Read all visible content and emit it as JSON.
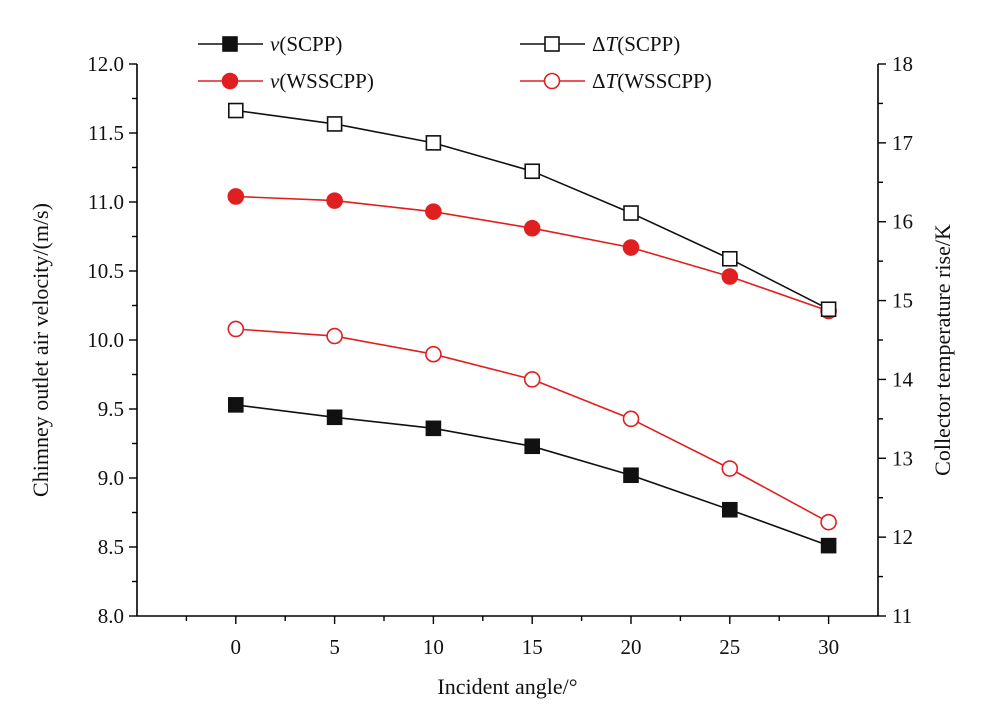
{
  "chart_data": {
    "type": "line",
    "x": [
      0,
      5,
      10,
      15,
      20,
      25,
      30
    ],
    "xlabel": "Incident angle/°",
    "ylabel_left": "Chimney outlet air velocity/(m/s)",
    "ylabel_right": "Collector temperature rise/K",
    "xlim": [
      -5,
      32.5
    ],
    "ylim_left": [
      8.0,
      12.0
    ],
    "ylim_right": [
      11,
      18
    ],
    "xticks": [
      "0",
      "5",
      "10",
      "15",
      "20",
      "25",
      "30"
    ],
    "yticks_left": [
      "8.0",
      "8.5",
      "9.0",
      "9.5",
      "10.0",
      "10.5",
      "11.0",
      "11.5",
      "12.0"
    ],
    "yticks_right": [
      "11",
      "12",
      "13",
      "14",
      "15",
      "16",
      "17",
      "18"
    ],
    "grid": false,
    "legend_position": "top",
    "series": [
      {
        "name": "v(SCPP)",
        "legend_var": "v",
        "legend_rest": "(SCPP)",
        "axis": "left",
        "color": "#111111",
        "marker": "filled-square",
        "values": [
          9.53,
          9.44,
          9.36,
          9.23,
          9.02,
          8.77,
          8.51
        ]
      },
      {
        "name": "v(WSSCPP)",
        "legend_var": "v",
        "legend_rest": "(WSSCPP)",
        "axis": "left",
        "color": "#e02020",
        "marker": "filled-circle",
        "values": [
          11.04,
          11.01,
          10.93,
          10.81,
          10.67,
          10.46,
          10.21
        ]
      },
      {
        "name": "ΔT(SCPP)",
        "legend_pre": "Δ",
        "legend_var": "T",
        "legend_rest": "(SCPP)",
        "axis": "right",
        "color": "#111111",
        "marker": "open-square",
        "values": [
          17.41,
          17.24,
          17.0,
          16.64,
          16.11,
          15.53,
          14.89
        ]
      },
      {
        "name": "ΔT(WSSCPP)",
        "legend_pre": "Δ",
        "legend_var": "T",
        "legend_rest": "(WSSCPP)",
        "axis": "right",
        "color": "#e02020",
        "marker": "open-circle",
        "values": [
          14.64,
          14.55,
          14.32,
          14.0,
          13.5,
          12.87,
          12.19
        ]
      }
    ]
  }
}
